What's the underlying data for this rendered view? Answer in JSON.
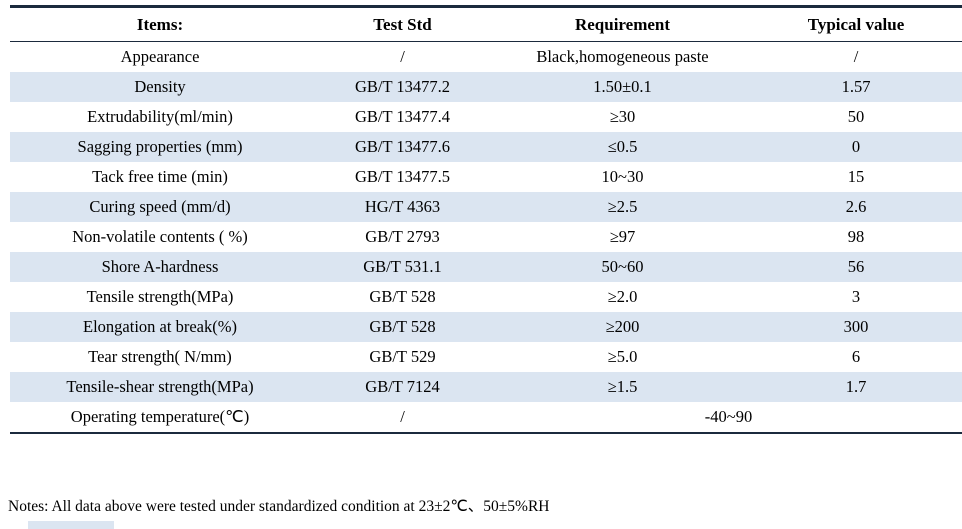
{
  "colors": {
    "row_shading": "#dbe5f1",
    "table_border": "#1b2a3d",
    "text": "#000000"
  },
  "table": {
    "headers": [
      "Items:",
      "Test Std",
      "Requirement",
      "Typical value"
    ],
    "rows": [
      {
        "cells": [
          "Appearance",
          "/",
          "Black,homogeneous paste",
          "/"
        ]
      },
      {
        "cells": [
          "Density",
          "GB/T 13477.2",
          "1.50±0.1",
          "1.57"
        ]
      },
      {
        "cells": [
          "Extrudability(ml/min)",
          "GB/T 13477.4",
          "≥30",
          "50"
        ]
      },
      {
        "cells": [
          "Sagging properties (mm)",
          "GB/T 13477.6",
          "≤0.5",
          "0"
        ]
      },
      {
        "cells": [
          "Tack free time (min)",
          "GB/T 13477.5",
          "10~30",
          "15"
        ]
      },
      {
        "cells": [
          "Curing speed (mm/d)",
          "HG/T 4363",
          "≥2.5",
          "2.6"
        ]
      },
      {
        "cells": [
          "Non-volatile contents ( %)",
          "GB/T 2793",
          "≥97",
          "98"
        ]
      },
      {
        "cells": [
          "Shore A-hardness",
          "GB/T 531.1",
          "50~60",
          "56"
        ]
      },
      {
        "cells": [
          "Tensile strength(MPa)",
          "GB/T 528",
          "≥2.0",
          "3"
        ]
      },
      {
        "cells": [
          "Elongation at break(%)",
          "GB/T 528",
          "≥200",
          "300"
        ]
      },
      {
        "cells": [
          "Tear strength( N/mm)",
          "GB/T 529",
          "≥5.0",
          "6"
        ]
      },
      {
        "cells": [
          "Tensile-shear strength(MPa)",
          "GB/T 7124",
          "≥1.5",
          "1.7"
        ]
      },
      {
        "cells": [
          "Operating temperature(℃)",
          "/",
          "-40~90"
        ],
        "colspan_last": 2
      }
    ]
  },
  "note": "Notes: All data above were tested under standardized condition at 23±2℃、50±5%RH"
}
